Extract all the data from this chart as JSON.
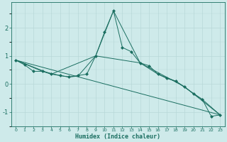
{
  "xlabel": "Humidex (Indice chaleur)",
  "ylabel": "",
  "bg_color": "#ceeaea",
  "line_color": "#1a6e60",
  "grid_color_major": "#b8d8d8",
  "grid_color_minor": "#d0e8e8",
  "xlim": [
    -0.5,
    23.5
  ],
  "ylim": [
    -1.5,
    2.9
  ],
  "yticks": [
    -1,
    0,
    1,
    2
  ],
  "xticks": [
    0,
    1,
    2,
    3,
    4,
    5,
    6,
    7,
    8,
    9,
    10,
    11,
    12,
    13,
    14,
    15,
    16,
    17,
    18,
    19,
    20,
    21,
    22,
    23
  ],
  "lines": [
    {
      "x": [
        0,
        1,
        2,
        3,
        4,
        5,
        6,
        7,
        8,
        9,
        10,
        11,
        12,
        13,
        14,
        15,
        16,
        17,
        18,
        19,
        20,
        21,
        22,
        23
      ],
      "y": [
        0.85,
        0.68,
        0.45,
        0.45,
        0.35,
        0.3,
        0.25,
        0.3,
        0.35,
        1.0,
        1.85,
        2.6,
        1.3,
        1.15,
        0.75,
        0.65,
        0.35,
        0.2,
        0.1,
        -0.1,
        -0.35,
        -0.55,
        -1.15,
        -1.1
      ],
      "marker": "D",
      "markersize": 2.0
    },
    {
      "x": [
        0,
        23
      ],
      "y": [
        0.85,
        -1.1
      ],
      "marker": null
    },
    {
      "x": [
        0,
        3,
        5,
        6,
        7,
        9,
        11,
        14,
        16,
        18,
        21,
        23
      ],
      "y": [
        0.85,
        0.45,
        0.3,
        0.25,
        0.28,
        1.0,
        2.6,
        0.75,
        0.35,
        0.1,
        -0.55,
        -1.1
      ],
      "marker": null
    },
    {
      "x": [
        0,
        4,
        9,
        14,
        19,
        23
      ],
      "y": [
        0.85,
        0.35,
        1.0,
        0.75,
        -0.1,
        -1.1
      ],
      "marker": null
    }
  ]
}
